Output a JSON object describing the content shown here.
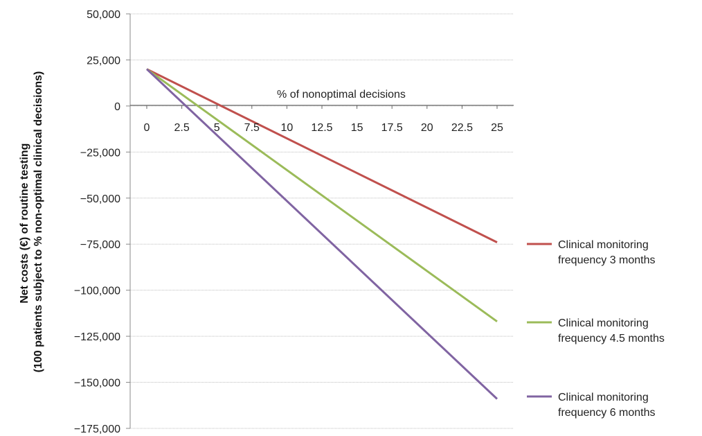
{
  "chart_data": {
    "type": "line",
    "xlabel": "% of nonoptimal decisions",
    "ylabel_lines": [
      "Net costs (€) of routine testing",
      "(100 patients subject to % non-optimal clinical decisions)"
    ],
    "x_ticks": [
      "0",
      "2.5",
      "5",
      "7.5",
      "10",
      "12.5",
      "15",
      "17.5",
      "20",
      "22.5",
      "25"
    ],
    "y_ticks": [
      "50,000",
      "25,000",
      "0",
      "−25,000",
      "−50,000",
      "−75,000",
      "−100,000",
      "−125,000",
      "−150,000",
      "−175,000"
    ],
    "xlim": [
      0,
      25
    ],
    "ylim": [
      -175000,
      50000
    ],
    "grid": "horizontal",
    "legend_position": "right",
    "series": [
      {
        "name_lines": [
          "Clinical monitoring",
          "frequency 3 months"
        ],
        "color": "#c0504d",
        "x": [
          0,
          25
        ],
        "y": [
          20000,
          -74000
        ]
      },
      {
        "name_lines": [
          "Clinical monitoring",
          "frequency 4.5 months"
        ],
        "color": "#9bbb59",
        "x": [
          0,
          25
        ],
        "y": [
          20000,
          -117000
        ]
      },
      {
        "name_lines": [
          "Clinical monitoring",
          "frequency 6 months"
        ],
        "color": "#8064a2",
        "x": [
          0,
          25
        ],
        "y": [
          20000,
          -159000
        ]
      }
    ]
  }
}
